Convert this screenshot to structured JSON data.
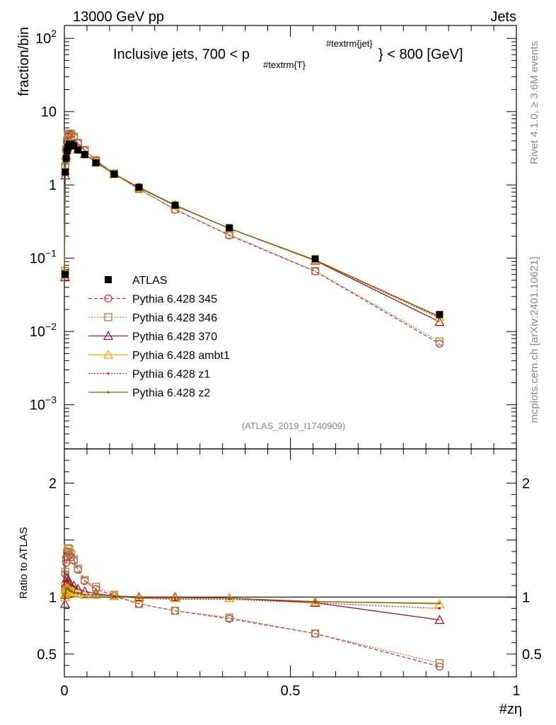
{
  "header": {
    "energy_label": "13000 GeV pp",
    "category_label": "Jets"
  },
  "side_labels": {
    "rivet": "Rivet 4.1.0, ≥ 3.6M events",
    "source": "mcplots.cern.ch [arXiv:2401.10621]"
  },
  "chart_data": [
    {
      "type": "line",
      "panel": "main",
      "title_main": "Inclusive jets, 700 < p",
      "title_sub": "#textrm{T}",
      "title_sup": "#textrm{jet}",
      "title_end": "} < 800 [GeV]",
      "watermark": "(ATLAS_2019_I1740909)",
      "ylabel": "fraction/bin",
      "yscale": "log",
      "ylim": [
        0.00025,
        150
      ],
      "xlim": [
        0,
        1
      ],
      "yticks": [
        {
          "v": 0.001,
          "b": "10",
          "e": "−3"
        },
        {
          "v": 0.01,
          "b": "10",
          "e": "−2"
        },
        {
          "v": 0.1,
          "b": "10",
          "e": "−1"
        },
        {
          "v": 1,
          "b": "1",
          "e": ""
        },
        {
          "v": 10,
          "b": "10",
          "e": ""
        },
        {
          "v": 100,
          "b": "10",
          "e": "2"
        }
      ],
      "x": [
        0.0,
        0.002,
        0.004,
        0.006,
        0.008,
        0.011,
        0.015,
        0.021,
        0.03,
        0.045,
        0.07,
        0.11,
        0.165,
        0.245,
        0.365,
        0.555,
        0.83
      ],
      "legend": [
        "ATLAS",
        "Pythia 6.428 345",
        "Pythia 6.428 346",
        "Pythia 6.428 370",
        "Pythia 6.428 ambt1",
        "Pythia 6.428 z1",
        "Pythia 6.428 z2"
      ],
      "series": [
        {
          "name": "ATLAS",
          "color": "#000000",
          "marker": "filled-square",
          "dash": "none",
          "values": [
            0.06,
            1.5,
            2.3,
            2.9,
            3.3,
            3.6,
            3.6,
            3.4,
            3.0,
            2.6,
            2.0,
            1.4,
            0.93,
            0.53,
            0.26,
            0.098,
            0.017
          ]
        },
        {
          "name": "Pythia 6.428 345",
          "color": "#b03a48",
          "marker": "open-circle",
          "dash": "5,3",
          "values": [
            0.063,
            1.8,
            3.0,
            3.9,
            4.6,
            4.9,
            4.9,
            4.5,
            3.7,
            2.95,
            2.15,
            1.42,
            0.88,
            0.46,
            0.205,
            0.066,
            0.0068
          ]
        },
        {
          "name": "Pythia 6.428 346",
          "color": "#b07a3a",
          "marker": "open-square",
          "dash": "2,2",
          "values": [
            0.067,
            1.8,
            3.05,
            4.0,
            4.7,
            5.0,
            5.0,
            4.55,
            3.75,
            3.0,
            2.18,
            1.43,
            0.88,
            0.465,
            0.21,
            0.067,
            0.0073
          ]
        },
        {
          "name": "Pythia 6.428 370",
          "color": "#8b1a2b",
          "marker": "open-triangle",
          "dash": "none",
          "values": [
            0.055,
            1.35,
            2.55,
            3.25,
            3.7,
            3.95,
            3.85,
            3.65,
            3.1,
            2.65,
            2.05,
            1.42,
            0.93,
            0.53,
            0.255,
            0.093,
            0.0135
          ]
        },
        {
          "name": "Pythia 6.428 ambt1",
          "color": "#f0a800",
          "marker": "open-triangle",
          "dash": "none",
          "values": [
            0.06,
            1.55,
            2.5,
            3.1,
            3.55,
            3.8,
            3.75,
            3.55,
            3.05,
            2.62,
            2.03,
            1.41,
            0.92,
            0.525,
            0.256,
            0.095,
            0.0158
          ]
        },
        {
          "name": "Pythia 6.428 z1",
          "color": "#e02020",
          "marker": "dot",
          "dash": "2,2",
          "values": [
            0.06,
            1.55,
            2.5,
            3.1,
            3.55,
            3.8,
            3.75,
            3.55,
            3.05,
            2.62,
            2.03,
            1.41,
            0.92,
            0.522,
            0.255,
            0.093,
            0.0153
          ]
        },
        {
          "name": "Pythia 6.428 z2",
          "color": "#6b6b1a",
          "marker": "dot",
          "dash": "none",
          "values": [
            0.06,
            1.55,
            2.5,
            3.1,
            3.55,
            3.8,
            3.75,
            3.55,
            3.05,
            2.62,
            2.03,
            1.41,
            0.92,
            0.523,
            0.256,
            0.094,
            0.016
          ]
        }
      ]
    },
    {
      "type": "line",
      "panel": "ratio",
      "ylabel": "Ratio to ATLAS",
      "xlabel": "#zη",
      "ylim": [
        0.3,
        2.3
      ],
      "xlim": [
        0,
        1
      ],
      "yticks": [
        0.5,
        1,
        2
      ],
      "ytick_labels": [
        "0.5",
        "1",
        "2"
      ],
      "xticks": [
        0,
        0.5,
        1
      ],
      "xtick_labels": [
        "0",
        "0.5",
        "1"
      ],
      "x": [
        0.0,
        0.002,
        0.004,
        0.006,
        0.008,
        0.011,
        0.015,
        0.021,
        0.03,
        0.045,
        0.07,
        0.11,
        0.165,
        0.245,
        0.365,
        0.555,
        0.83
      ],
      "reference": 1,
      "series": [
        {
          "name": "Pythia 6.428 345",
          "color": "#b03a48",
          "marker": "open-circle",
          "dash": "5,3",
          "values": [
            1.05,
            1.2,
            1.3,
            1.35,
            1.4,
            1.37,
            1.35,
            1.32,
            1.24,
            1.14,
            1.07,
            1.01,
            0.94,
            0.88,
            0.81,
            0.68,
            0.39
          ]
        },
        {
          "name": "Pythia 6.428 346",
          "color": "#b07a3a",
          "marker": "open-square",
          "dash": "2,2",
          "values": [
            1.1,
            1.22,
            1.33,
            1.39,
            1.43,
            1.42,
            1.38,
            1.33,
            1.25,
            1.15,
            1.09,
            1.02,
            0.94,
            0.88,
            0.82,
            0.68,
            0.42
          ]
        },
        {
          "name": "Pythia 6.428 370",
          "color": "#8b1a2b",
          "marker": "open-triangle",
          "dash": "none",
          "values": [
            0.94,
            1.02,
            1.12,
            1.17,
            1.14,
            1.12,
            1.1,
            1.1,
            1.07,
            1.05,
            1.03,
            1.01,
            1.0,
            1.0,
            0.99,
            0.95,
            0.8
          ]
        },
        {
          "name": "Pythia 6.428 ambt1",
          "color": "#f0a800",
          "marker": "open-triangle",
          "dash": "none",
          "values": [
            1.0,
            1.03,
            1.08,
            1.07,
            1.08,
            1.06,
            1.05,
            1.04,
            1.03,
            1.02,
            1.02,
            1.01,
            0.99,
            0.99,
            0.99,
            0.96,
            0.94
          ]
        },
        {
          "name": "Pythia 6.428 z1",
          "color": "#e02020",
          "marker": "dot",
          "dash": "2,2",
          "values": [
            1.0,
            1.03,
            1.07,
            1.07,
            1.08,
            1.06,
            1.05,
            1.04,
            1.03,
            1.02,
            1.02,
            1.01,
            0.99,
            0.98,
            0.98,
            0.95,
            0.9
          ]
        },
        {
          "name": "Pythia 6.428 z2",
          "color": "#6b6b1a",
          "marker": "dot",
          "dash": "none",
          "values": [
            1.0,
            1.03,
            1.07,
            1.07,
            1.08,
            1.06,
            1.05,
            1.04,
            1.03,
            1.02,
            1.02,
            1.01,
            0.99,
            0.99,
            0.99,
            0.96,
            0.945
          ]
        }
      ]
    }
  ]
}
